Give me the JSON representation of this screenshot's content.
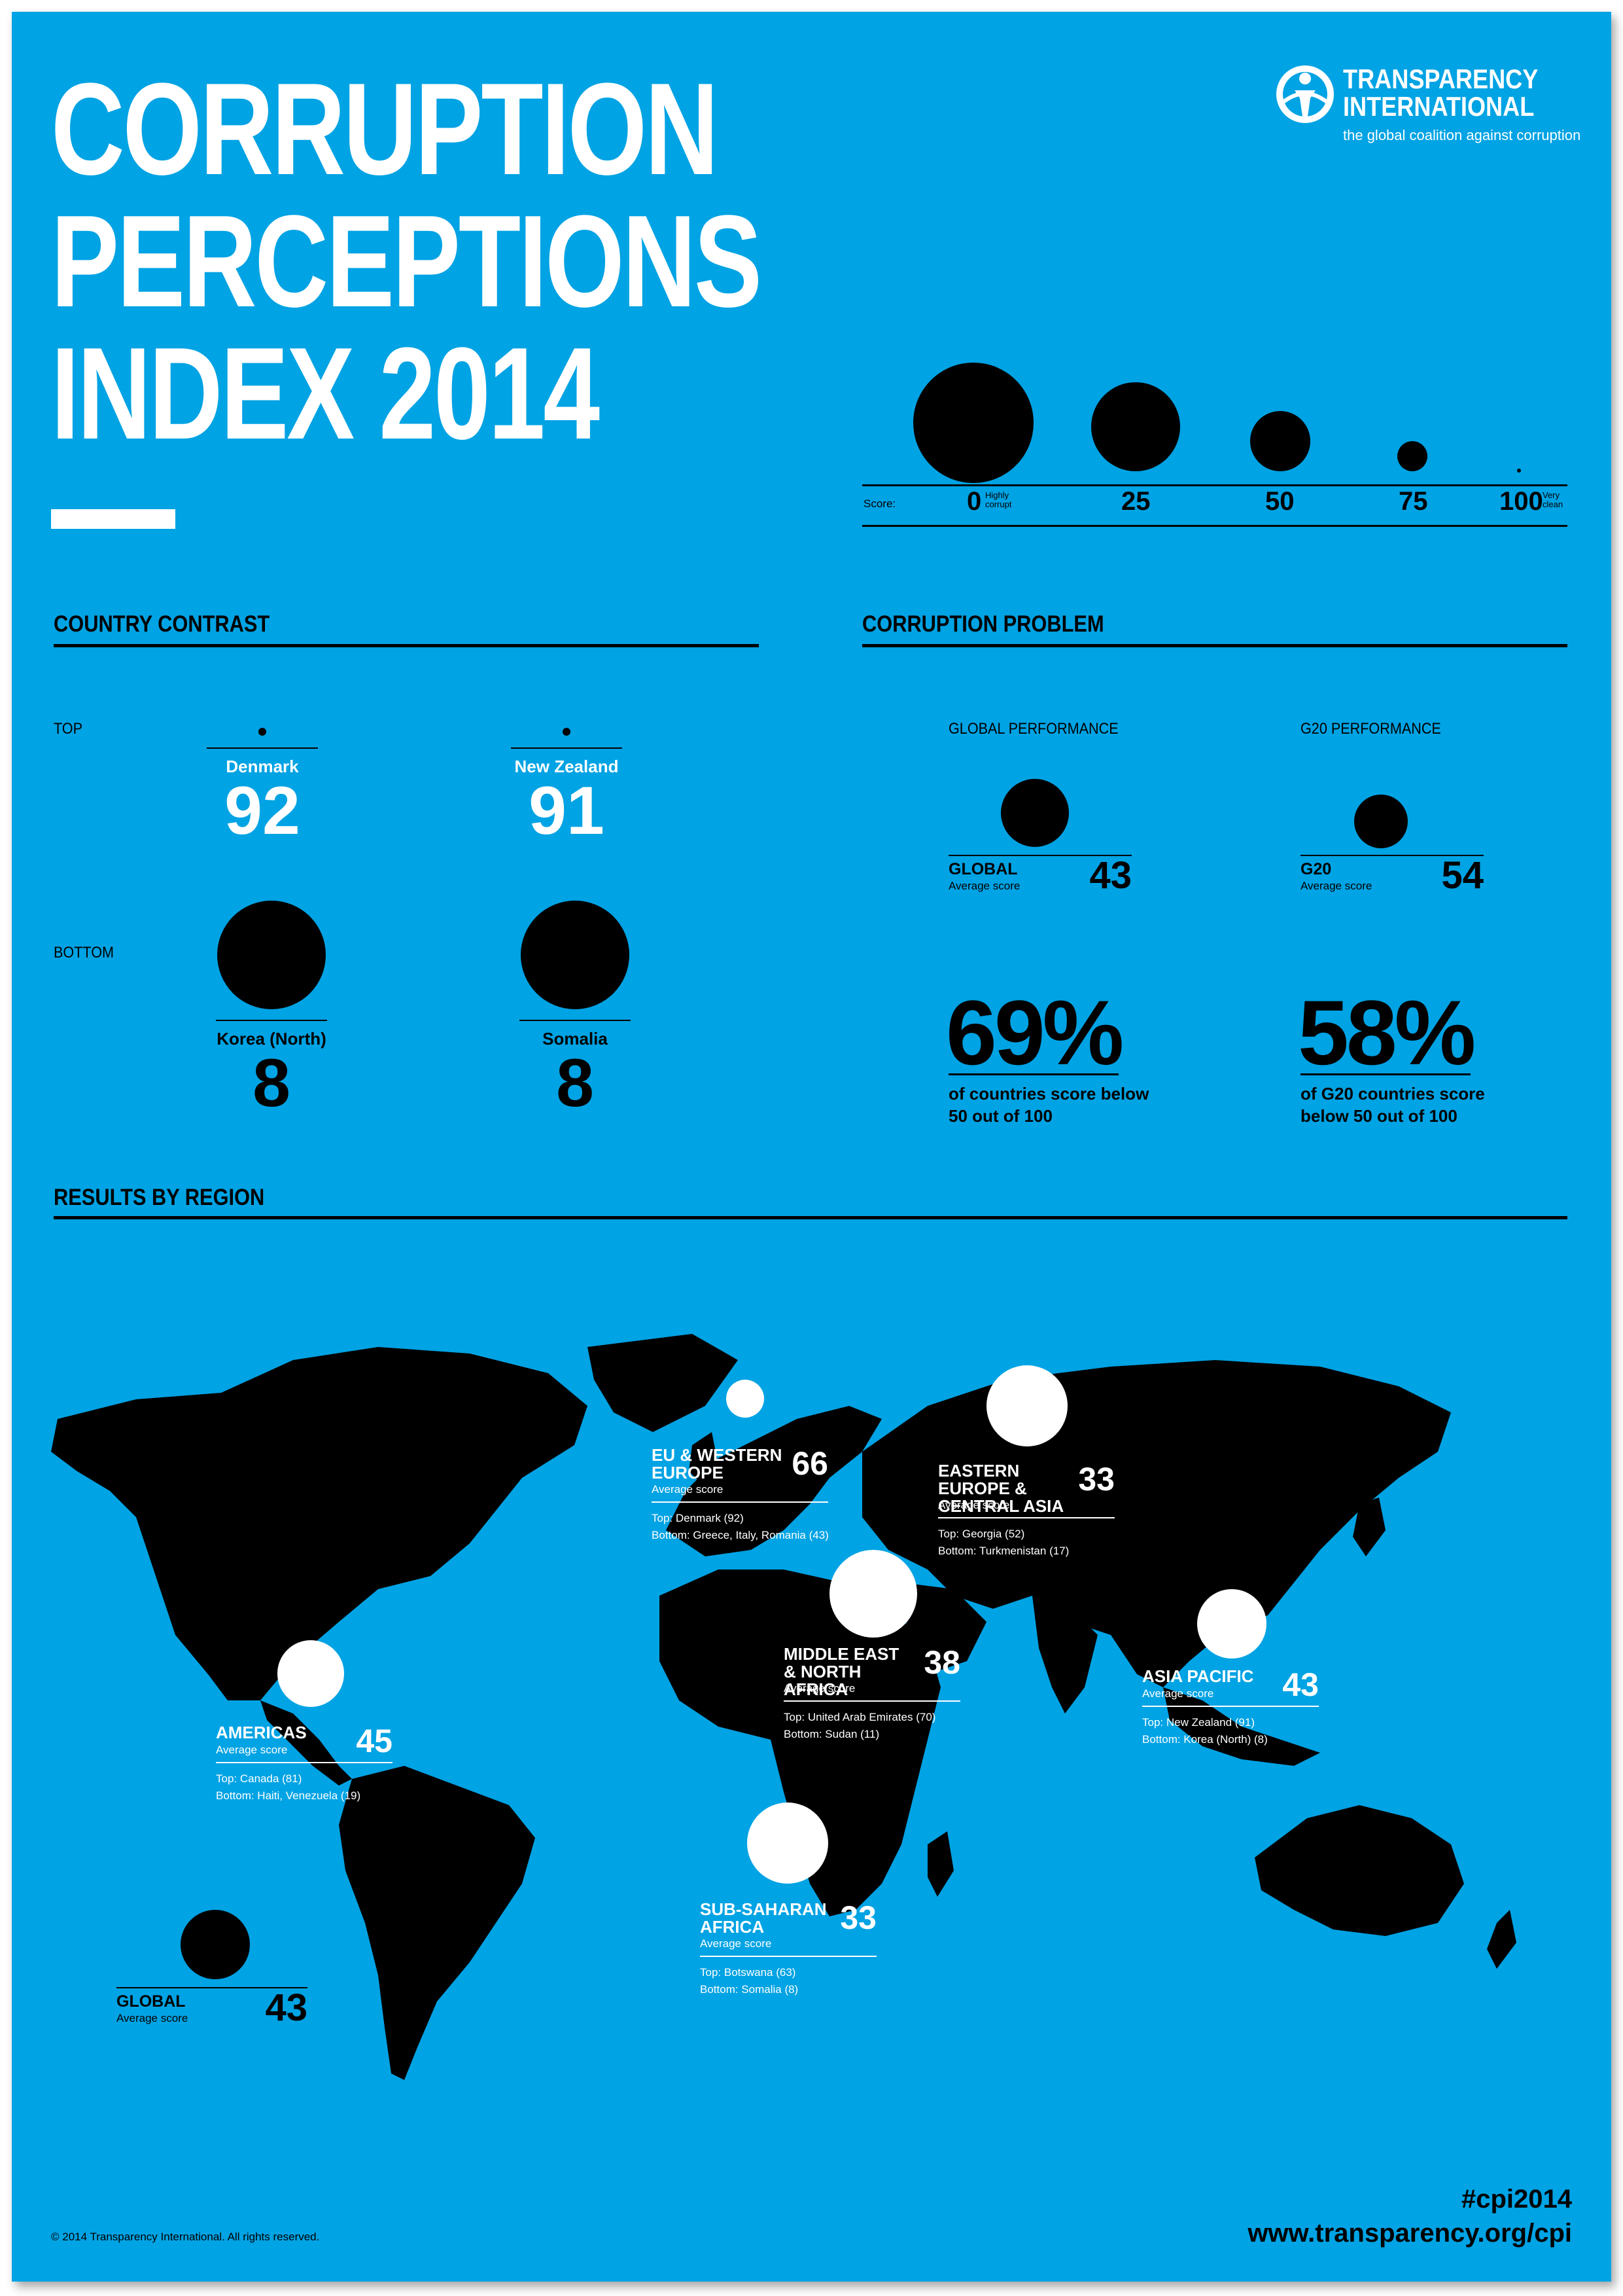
{
  "title": {
    "line1": "CORRUPTION",
    "line2": "PERCEPTIONS",
    "line3": "INDEX 2014"
  },
  "logo": {
    "line1": "TRANSPARENCY",
    "line2": "INTERNATIONAL",
    "tagline": "the global coalition against corruption"
  },
  "scale": {
    "label": "Score:",
    "ticks": [
      "0",
      "25",
      "50",
      "75",
      "100"
    ],
    "low_note_1": "Highly",
    "low_note_2": "corrupt",
    "high_note_1": "Very",
    "high_note_2": "clean"
  },
  "country_contrast": {
    "title": "COUNTRY CONTRAST",
    "top_label": "TOP",
    "bottom_label": "BOTTOM",
    "top": [
      {
        "name": "Denmark",
        "score": "92"
      },
      {
        "name": "New Zealand",
        "score": "91"
      }
    ],
    "bottom": [
      {
        "name": "Korea (North)",
        "score": "8"
      },
      {
        "name": "Somalia",
        "score": "8"
      }
    ]
  },
  "corruption_problem": {
    "title": "CORRUPTION PROBLEM",
    "global": {
      "head": "GLOBAL PERFORMANCE",
      "label": "GLOBAL",
      "sub": "Average score",
      "score": "43",
      "pct": "69%",
      "pct_text": "of countries score below 50 out of 100"
    },
    "g20": {
      "head": "G20 PERFORMANCE",
      "label": "G20",
      "sub": "Average score",
      "score": "54",
      "pct": "58%",
      "pct_text": "of G20 countries score below 50 out of 100"
    }
  },
  "results": {
    "title": "RESULTS BY REGION",
    "regions": [
      {
        "name": "EU & WESTERN EUROPE",
        "sub": "Average score",
        "score": "66",
        "top": "Top: Denmark (92)",
        "bottom": "Bottom: Greece, Italy, Romania (43)"
      },
      {
        "name": "EASTERN EUROPE & CENTRAL ASIA",
        "sub": "Average score",
        "score": "33",
        "top": "Top: Georgia (52)",
        "bottom": "Bottom: Turkmenistan (17)"
      },
      {
        "name": "MIDDLE EAST & NORTH AFRICA",
        "sub": "Average score",
        "score": "38",
        "top": "Top: United Arab Emirates (70)",
        "bottom": "Bottom: Sudan (11)"
      },
      {
        "name": "ASIA PACIFIC",
        "sub": "Average score",
        "score": "43",
        "top": "Top: New Zealand (91)",
        "bottom": "Bottom: Korea (North) (8)"
      },
      {
        "name": "AMERICAS",
        "sub": "Average score",
        "score": "45",
        "top": "Top: Canada (81)",
        "bottom": "Bottom: Haiti, Venezuela (19)"
      },
      {
        "name": "SUB-SAHARAN AFRICA",
        "sub": "Average score",
        "score": "33",
        "top": "Top: Botswana (63)",
        "bottom": "Bottom: Somalia (8)"
      }
    ],
    "global": {
      "label": "GLOBAL",
      "sub": "Average score",
      "score": "43"
    }
  },
  "footer": {
    "copyright": "© 2014 Transparency International. All rights reserved.",
    "hashtag": "#cpi2014",
    "url": "www.transparency.org/cpi"
  },
  "colors": {
    "background": "#00a3e4",
    "ink": "#000000",
    "highlight": "#ffffff"
  }
}
